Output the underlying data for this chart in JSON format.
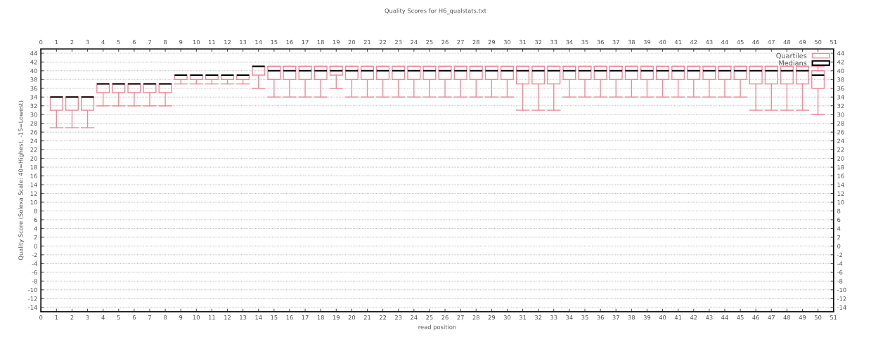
{
  "chart_data": {
    "type": "box",
    "title": "Quality Scores for H6_qualstats.txt",
    "xlabel": "read position",
    "ylabel": "Quality Score (Solexa Scale: 40=Highest, -15=Lowest)",
    "xlim": [
      0,
      51
    ],
    "xticks": [
      0,
      1,
      2,
      3,
      4,
      5,
      6,
      7,
      8,
      9,
      10,
      11,
      12,
      13,
      14,
      15,
      16,
      17,
      18,
      19,
      20,
      21,
      22,
      23,
      24,
      25,
      26,
      27,
      28,
      29,
      30,
      31,
      32,
      33,
      34,
      35,
      36,
      37,
      38,
      39,
      40,
      41,
      42,
      43,
      44,
      45,
      46,
      47,
      48,
      49,
      50,
      51
    ],
    "x2lim": [
      0,
      51
    ],
    "x2ticks": [
      0,
      1,
      2,
      3,
      4,
      5,
      6,
      7,
      8,
      9,
      10,
      11,
      12,
      13,
      14,
      15,
      16,
      17,
      18,
      19,
      20,
      21,
      22,
      23,
      24,
      25,
      26,
      27,
      28,
      29,
      30,
      31,
      32,
      33,
      34,
      35,
      36,
      37,
      38,
      39,
      40,
      41,
      42,
      43,
      44,
      45,
      46,
      47,
      48,
      49,
      50,
      51
    ],
    "ylim": [
      -15,
      45
    ],
    "yticks": [
      -14,
      -12,
      -10,
      -8,
      -6,
      -4,
      -2,
      0,
      2,
      4,
      6,
      8,
      10,
      12,
      14,
      16,
      18,
      20,
      22,
      24,
      26,
      28,
      30,
      32,
      34,
      36,
      38,
      40,
      42,
      44
    ],
    "y2lim": [
      -15,
      45
    ],
    "y2ticks": [
      -14,
      -12,
      -10,
      -8,
      -6,
      -4,
      -2,
      0,
      2,
      4,
      6,
      8,
      10,
      12,
      14,
      16,
      18,
      20,
      22,
      24,
      26,
      28,
      30,
      32,
      34,
      36,
      38,
      40,
      42,
      44
    ],
    "grid": "y",
    "legend": "top right",
    "series": [
      {
        "name": "Quartiles",
        "color": "#f08a96",
        "x": [
          1,
          2,
          3,
          4,
          5,
          6,
          7,
          8,
          9,
          10,
          11,
          12,
          13,
          14,
          15,
          16,
          17,
          18,
          19,
          20,
          21,
          22,
          23,
          24,
          25,
          26,
          27,
          28,
          29,
          30,
          31,
          32,
          33,
          34,
          35,
          36,
          37,
          38,
          39,
          40,
          41,
          42,
          43,
          44,
          45,
          46,
          47,
          48,
          49,
          50
        ],
        "boxes": [
          {
            "low": 27,
            "q1": 31,
            "median": 34,
            "q3": 34,
            "high": 34
          },
          {
            "low": 27,
            "q1": 31,
            "median": 34,
            "q3": 34,
            "high": 34
          },
          {
            "low": 27,
            "q1": 31,
            "median": 34,
            "q3": 34,
            "high": 34
          },
          {
            "low": 32,
            "q1": 35,
            "median": 37,
            "q3": 37,
            "high": 37
          },
          {
            "low": 32,
            "q1": 35,
            "median": 37,
            "q3": 37,
            "high": 37
          },
          {
            "low": 32,
            "q1": 35,
            "median": 37,
            "q3": 37,
            "high": 37
          },
          {
            "low": 32,
            "q1": 35,
            "median": 37,
            "q3": 37,
            "high": 37
          },
          {
            "low": 32,
            "q1": 35,
            "median": 37,
            "q3": 37,
            "high": 37
          },
          {
            "low": 37,
            "q1": 38,
            "median": 39,
            "q3": 39,
            "high": 39
          },
          {
            "low": 37,
            "q1": 38,
            "median": 39,
            "q3": 39,
            "high": 39
          },
          {
            "low": 37,
            "q1": 38,
            "median": 39,
            "q3": 39,
            "high": 39
          },
          {
            "low": 37,
            "q1": 38,
            "median": 39,
            "q3": 39,
            "high": 39
          },
          {
            "low": 37,
            "q1": 38,
            "median": 39,
            "q3": 39,
            "high": 39
          },
          {
            "low": 36,
            "q1": 39,
            "median": 41,
            "q3": 41,
            "high": 41
          },
          {
            "low": 34,
            "q1": 38,
            "median": 40,
            "q3": 41,
            "high": 41
          },
          {
            "low": 34,
            "q1": 38,
            "median": 40,
            "q3": 41,
            "high": 41
          },
          {
            "low": 34,
            "q1": 38,
            "median": 40,
            "q3": 41,
            "high": 41
          },
          {
            "low": 34,
            "q1": 38,
            "median": 40,
            "q3": 41,
            "high": 41
          },
          {
            "low": 36,
            "q1": 39,
            "median": 40,
            "q3": 41,
            "high": 41
          },
          {
            "low": 34,
            "q1": 38,
            "median": 40,
            "q3": 41,
            "high": 41
          },
          {
            "low": 34,
            "q1": 38,
            "median": 40,
            "q3": 41,
            "high": 41
          },
          {
            "low": 34,
            "q1": 38,
            "median": 40,
            "q3": 41,
            "high": 41
          },
          {
            "low": 34,
            "q1": 38,
            "median": 40,
            "q3": 41,
            "high": 41
          },
          {
            "low": 34,
            "q1": 38,
            "median": 40,
            "q3": 41,
            "high": 41
          },
          {
            "low": 34,
            "q1": 38,
            "median": 40,
            "q3": 41,
            "high": 41
          },
          {
            "low": 34,
            "q1": 38,
            "median": 40,
            "q3": 41,
            "high": 41
          },
          {
            "low": 34,
            "q1": 38,
            "median": 40,
            "q3": 41,
            "high": 41
          },
          {
            "low": 34,
            "q1": 38,
            "median": 40,
            "q3": 41,
            "high": 41
          },
          {
            "low": 34,
            "q1": 38,
            "median": 40,
            "q3": 41,
            "high": 41
          },
          {
            "low": 34,
            "q1": 38,
            "median": 40,
            "q3": 41,
            "high": 41
          },
          {
            "low": 31,
            "q1": 37,
            "median": 40,
            "q3": 41,
            "high": 41
          },
          {
            "low": 31,
            "q1": 37,
            "median": 40,
            "q3": 41,
            "high": 41
          },
          {
            "low": 31,
            "q1": 37,
            "median": 40,
            "q3": 41,
            "high": 41
          },
          {
            "low": 34,
            "q1": 38,
            "median": 40,
            "q3": 41,
            "high": 41
          },
          {
            "low": 34,
            "q1": 38,
            "median": 40,
            "q3": 41,
            "high": 41
          },
          {
            "low": 34,
            "q1": 38,
            "median": 40,
            "q3": 41,
            "high": 41
          },
          {
            "low": 34,
            "q1": 38,
            "median": 40,
            "q3": 41,
            "high": 41
          },
          {
            "low": 34,
            "q1": 38,
            "median": 40,
            "q3": 41,
            "high": 41
          },
          {
            "low": 34,
            "q1": 38,
            "median": 40,
            "q3": 41,
            "high": 41
          },
          {
            "low": 34,
            "q1": 38,
            "median": 40,
            "q3": 41,
            "high": 41
          },
          {
            "low": 34,
            "q1": 38,
            "median": 40,
            "q3": 41,
            "high": 41
          },
          {
            "low": 34,
            "q1": 38,
            "median": 40,
            "q3": 41,
            "high": 41
          },
          {
            "low": 34,
            "q1": 38,
            "median": 40,
            "q3": 41,
            "high": 41
          },
          {
            "low": 34,
            "q1": 38,
            "median": 40,
            "q3": 41,
            "high": 41
          },
          {
            "low": 34,
            "q1": 38,
            "median": 40,
            "q3": 41,
            "high": 41
          },
          {
            "low": 31,
            "q1": 37,
            "median": 40,
            "q3": 41,
            "high": 41
          },
          {
            "low": 31,
            "q1": 37,
            "median": 40,
            "q3": 41,
            "high": 41
          },
          {
            "low": 31,
            "q1": 37,
            "median": 40,
            "q3": 41,
            "high": 41
          },
          {
            "low": 31,
            "q1": 37,
            "median": 40,
            "q3": 41,
            "high": 41
          },
          {
            "low": 30,
            "q1": 36,
            "median": 39,
            "q3": 40,
            "high": 41
          }
        ]
      },
      {
        "name": "Medians",
        "type": "other",
        "color": "#000000"
      }
    ]
  }
}
